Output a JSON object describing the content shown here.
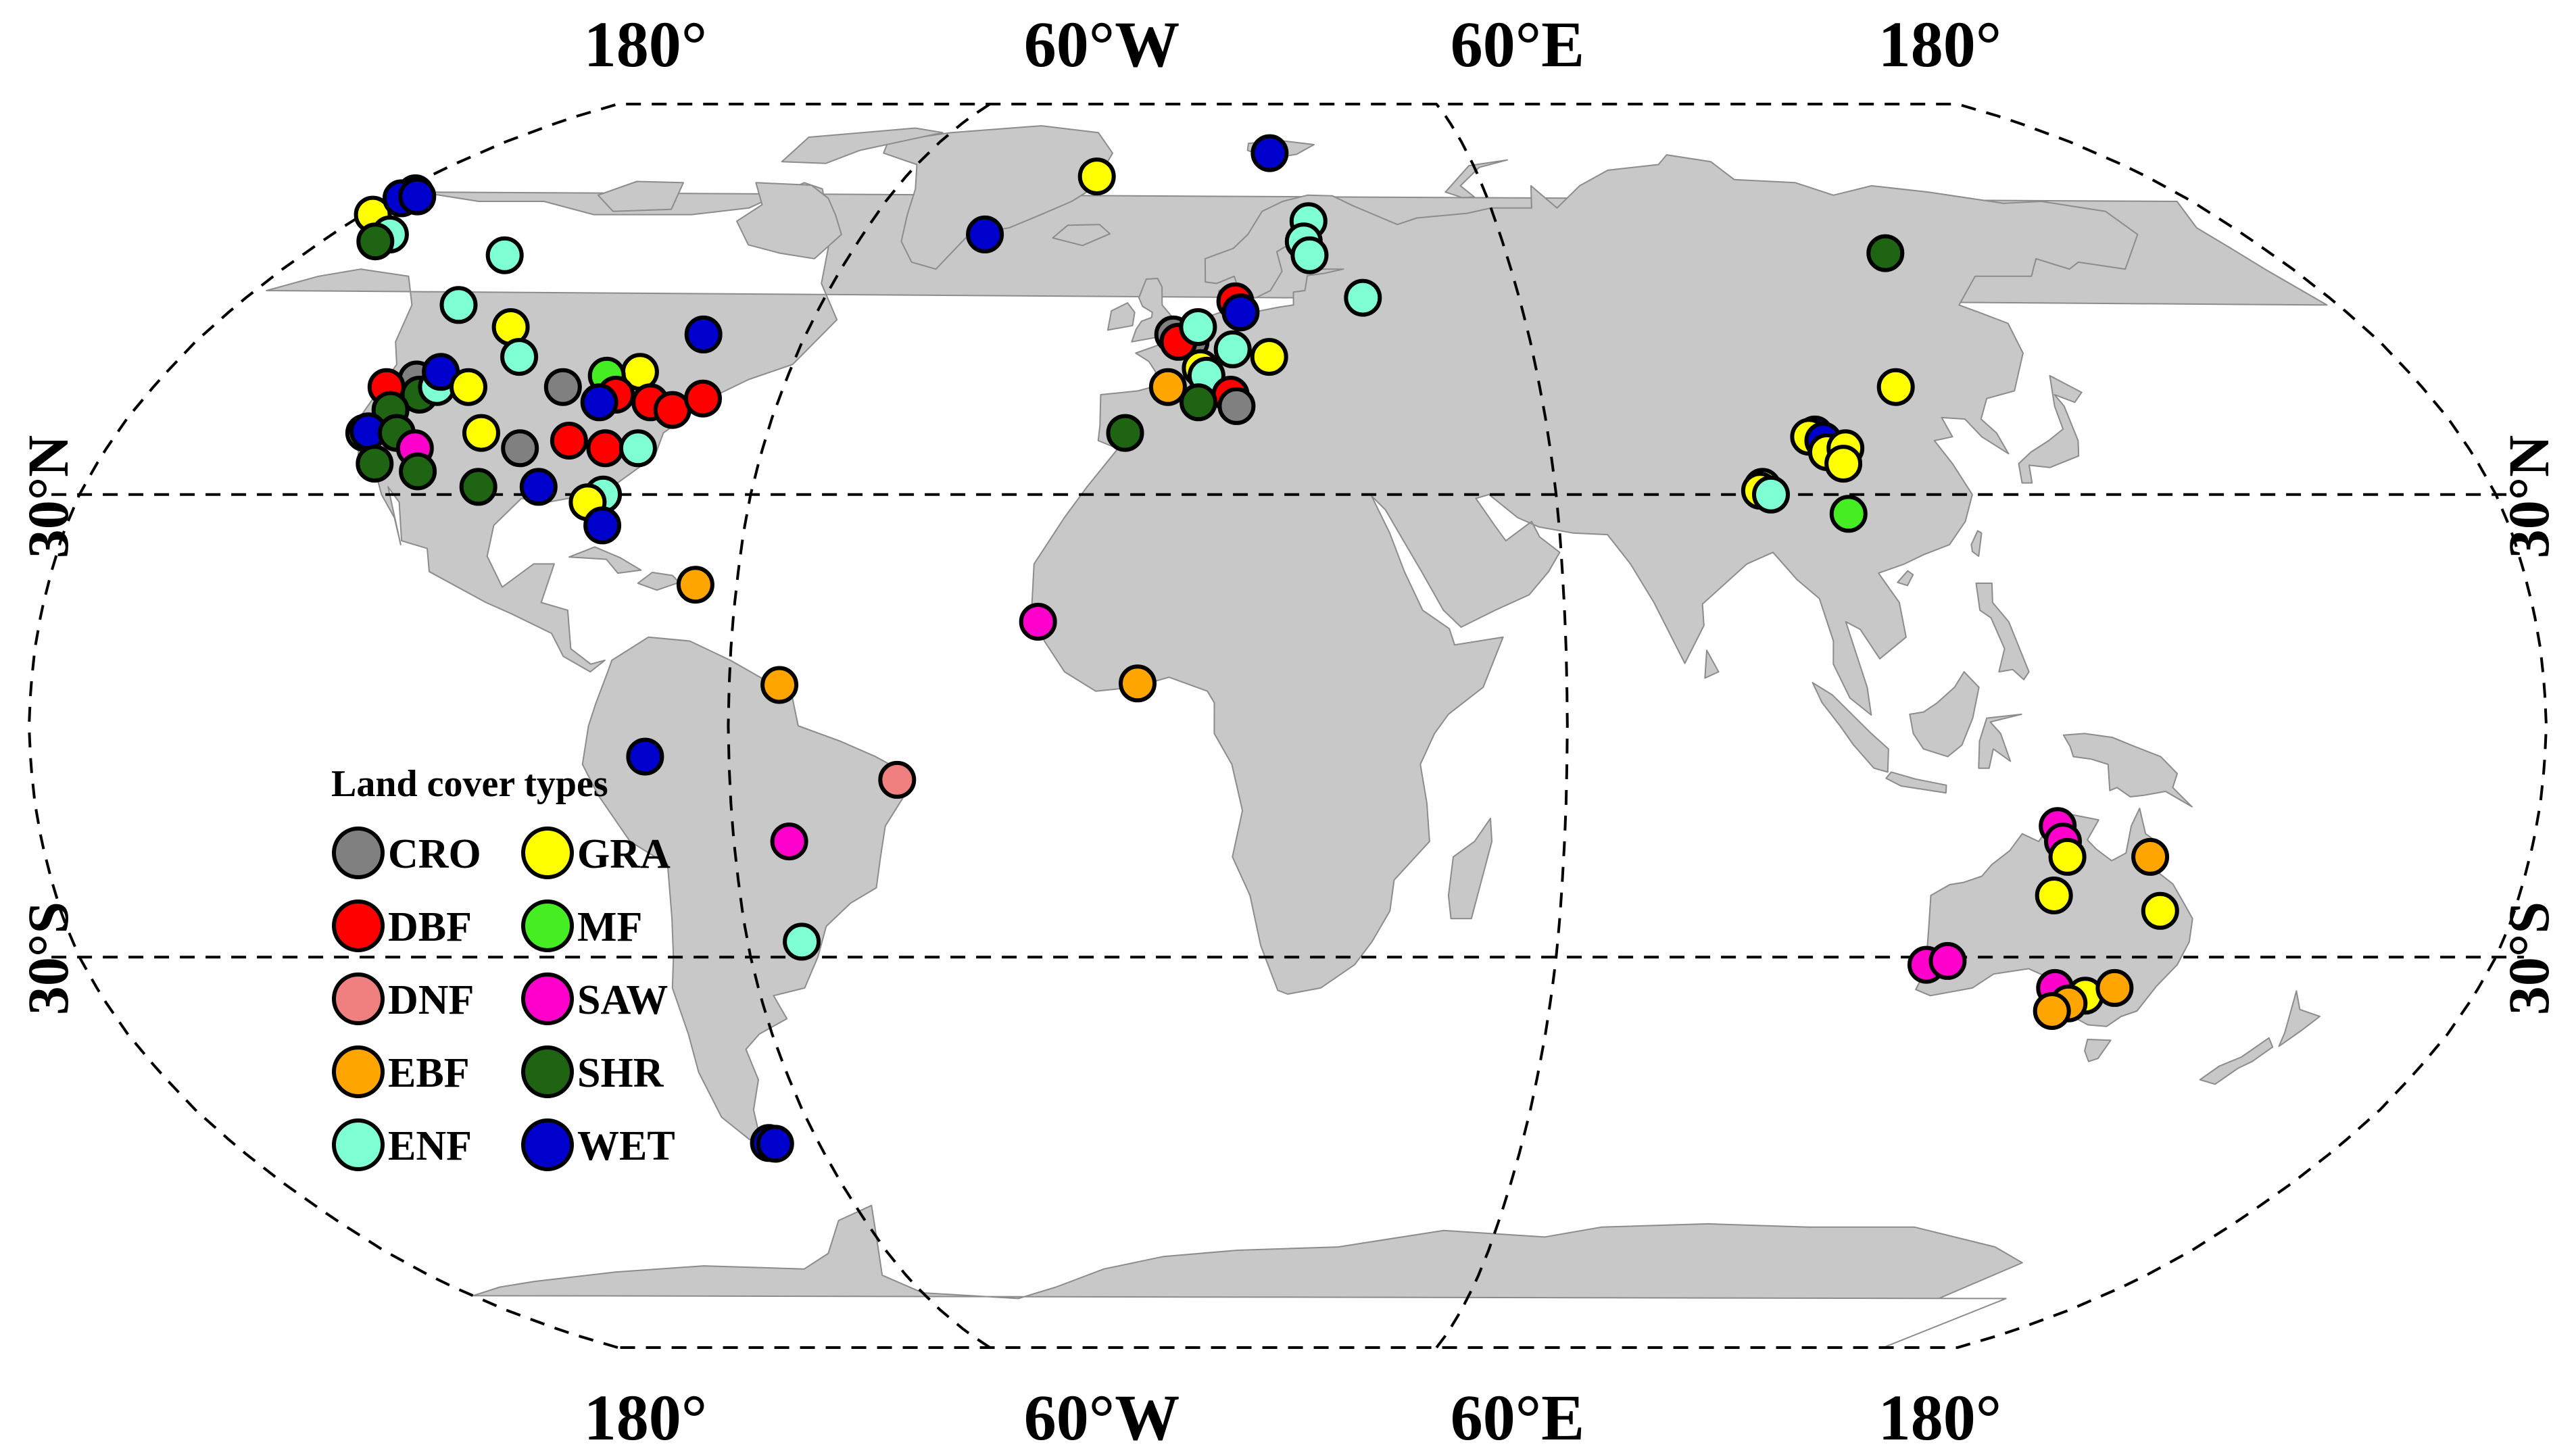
{
  "graticule_labels": {
    "top": [
      "180°",
      "60°W",
      "60°E",
      "180°"
    ],
    "bottom": [
      "180°",
      "60°W",
      "60°E",
      "180°"
    ],
    "left": [
      "30°N",
      "30°S"
    ],
    "right": [
      "30°N",
      "30°S"
    ]
  },
  "legend": {
    "title": "Land cover types",
    "items": [
      {
        "code": "CRO",
        "color": "#808080"
      },
      {
        "code": "GRA",
        "color": "#ffff00"
      },
      {
        "code": "DBF",
        "color": "#ff0000"
      },
      {
        "code": "MF",
        "color": "#44ee22"
      },
      {
        "code": "DNF",
        "color": "#f08080"
      },
      {
        "code": "SAW",
        "color": "#ff00cc"
      },
      {
        "code": "EBF",
        "color": "#ffa500"
      },
      {
        "code": "SHR",
        "color": "#1e6412"
      },
      {
        "code": "ENF",
        "color": "#7fffd4"
      },
      {
        "code": "WET",
        "color": "#0000cd"
      }
    ]
  },
  "colors": {
    "land": "#c8c8c8",
    "land_outline": "#8c8c8c",
    "graticule": "#000000"
  },
  "sites": [
    {
      "type": "GRA",
      "lon": -158,
      "lat": 68
    },
    {
      "type": "WET",
      "lon": -156.5,
      "lat": 71.3
    },
    {
      "type": "WET",
      "lon": -157.5,
      "lat": 70.5
    },
    {
      "type": "WET",
      "lon": -155,
      "lat": 70.8
    },
    {
      "type": "ENF",
      "lon": -149,
      "lat": 65
    },
    {
      "type": "SHR",
      "lon": -150,
      "lat": 64
    },
    {
      "type": "ENF",
      "lon": -123,
      "lat": 62
    },
    {
      "type": "ENF",
      "lon": -122,
      "lat": 55
    },
    {
      "type": "GRA",
      "lon": -110,
      "lat": 52
    },
    {
      "type": "WET",
      "lon": -77,
      "lat": 51
    },
    {
      "type": "ENF",
      "lon": -105,
      "lat": 48
    },
    {
      "type": "GRA",
      "lon": -84,
      "lat": 46
    },
    {
      "type": "CRO",
      "lon": -119,
      "lat": 45
    },
    {
      "type": "DBF",
      "lon": -123,
      "lat": 44
    },
    {
      "type": "SHR",
      "lon": -117,
      "lat": 43
    },
    {
      "type": "ENF",
      "lon": -115,
      "lat": 44
    },
    {
      "type": "WET",
      "lon": -116,
      "lat": 46
    },
    {
      "type": "SHR",
      "lon": -120,
      "lat": 41
    },
    {
      "type": "GRA",
      "lon": -110,
      "lat": 44
    },
    {
      "type": "MF",
      "lon": -89,
      "lat": 45.5
    },
    {
      "type": "CRO",
      "lon": -95,
      "lat": 44
    },
    {
      "type": "DBF",
      "lon": -86,
      "lat": 43
    },
    {
      "type": "WET",
      "lon": -88,
      "lat": 42
    },
    {
      "type": "DBF",
      "lon": -80,
      "lat": 42
    },
    {
      "type": "DBF",
      "lon": -76,
      "lat": 41
    },
    {
      "type": "DBF",
      "lon": -72,
      "lat": 42.5
    },
    {
      "type": "GRA",
      "lon": -122,
      "lat": 38
    },
    {
      "type": "WET",
      "lon": -121.5,
      "lat": 38.2
    },
    {
      "type": "SHR",
      "lon": -117,
      "lat": 38
    },
    {
      "type": "SAW",
      "lon": -113,
      "lat": 36
    },
    {
      "type": "GRA",
      "lon": -104,
      "lat": 38
    },
    {
      "type": "CRO",
      "lon": -97,
      "lat": 36
    },
    {
      "type": "DBF",
      "lon": -90,
      "lat": 37
    },
    {
      "type": "DBF",
      "lon": -84,
      "lat": 36
    },
    {
      "type": "ENF",
      "lon": -79,
      "lat": 36
    },
    {
      "type": "SHR",
      "lon": -118,
      "lat": 34
    },
    {
      "type": "SHR",
      "lon": -111,
      "lat": 33
    },
    {
      "type": "SHR",
      "lon": -101,
      "lat": 31
    },
    {
      "type": "WET",
      "lon": -92,
      "lat": 31
    },
    {
      "type": "ENF",
      "lon": -82,
      "lat": 30
    },
    {
      "type": "GRA",
      "lon": -84,
      "lat": 29
    },
    {
      "type": "WET",
      "lon": -81,
      "lat": 26
    },
    {
      "type": "EBF",
      "lon": -66,
      "lat": 18.3
    },
    {
      "type": "EBF",
      "lon": -52.8,
      "lat": 5.3
    },
    {
      "type": "WET",
      "lon": -72,
      "lat": -4
    },
    {
      "type": "DNF",
      "lon": -36,
      "lat": -7
    },
    {
      "type": "SAW",
      "lon": -52,
      "lat": -15
    },
    {
      "type": "ENF",
      "lon": -52,
      "lat": -28
    },
    {
      "type": "WET",
      "lon": -68.5,
      "lat": -54.5
    },
    {
      "type": "WET",
      "lon": -67.5,
      "lat": -54.6
    },
    {
      "type": "WET",
      "lon": -37,
      "lat": 65
    },
    {
      "type": "GRA",
      "lon": -20,
      "lat": 74
    },
    {
      "type": "WET",
      "lon": 16,
      "lat": 78
    },
    {
      "type": "SAW",
      "lon": -16,
      "lat": 13.5
    },
    {
      "type": "EBF",
      "lon": -1.5,
      "lat": 5.5
    },
    {
      "type": "ENF",
      "lon": 24,
      "lat": 67
    },
    {
      "type": "ENF",
      "lon": 23,
      "lat": 64
    },
    {
      "type": "ENF",
      "lon": 24,
      "lat": 62
    },
    {
      "type": "ENF",
      "lon": 33,
      "lat": 56
    },
    {
      "type": "DBF",
      "lon": 11,
      "lat": 55.5
    },
    {
      "type": "WET",
      "lon": 12,
      "lat": 54
    },
    {
      "type": "CRO",
      "lon": 1,
      "lat": 51
    },
    {
      "type": "CRO",
      "lon": 4,
      "lat": 50
    },
    {
      "type": "DBF",
      "lon": 2,
      "lat": 50
    },
    {
      "type": "ENF",
      "lon": 5,
      "lat": 52
    },
    {
      "type": "ENF",
      "lon": 11,
      "lat": 49
    },
    {
      "type": "GRA",
      "lon": 17,
      "lat": 48
    },
    {
      "type": "GRA",
      "lon": 6,
      "lat": 46.5
    },
    {
      "type": "EBF",
      "lon": 1,
      "lat": 44
    },
    {
      "type": "ENF",
      "lon": 7,
      "lat": 45.5
    },
    {
      "type": "DBF",
      "lon": 11,
      "lat": 43
    },
    {
      "type": "CRO",
      "lon": 12,
      "lat": 41.5
    },
    {
      "type": "SHR",
      "lon": 6,
      "lat": 42
    },
    {
      "type": "SHR",
      "lon": -5,
      "lat": 38
    },
    {
      "type": "SHR",
      "lon": 129.5,
      "lat": 62.3
    },
    {
      "type": "GRA",
      "lon": 116.5,
      "lat": 44
    },
    {
      "type": "WET",
      "lon": 101,
      "lat": 37.8
    },
    {
      "type": "GRA",
      "lon": 100,
      "lat": 37.5
    },
    {
      "type": "WET",
      "lon": 102,
      "lat": 37
    },
    {
      "type": "GRA",
      "lon": 102,
      "lat": 35.5
    },
    {
      "type": "GRA",
      "lon": 105,
      "lat": 36
    },
    {
      "type": "GRA",
      "lon": 104,
      "lat": 34
    },
    {
      "type": "GRA",
      "lon": 91,
      "lat": 31
    },
    {
      "type": "GRA",
      "lon": 90.5,
      "lat": 30.5
    },
    {
      "type": "ENF",
      "lon": 92,
      "lat": 30
    },
    {
      "type": "MF",
      "lon": 103,
      "lat": 27.5
    },
    {
      "type": "SAW",
      "lon": 131,
      "lat": -13
    },
    {
      "type": "SAW",
      "lon": 132,
      "lat": -15
    },
    {
      "type": "GRA",
      "lon": 133,
      "lat": -17
    },
    {
      "type": "GRA",
      "lon": 132,
      "lat": -22
    },
    {
      "type": "EBF",
      "lon": 145,
      "lat": -17
    },
    {
      "type": "GRA",
      "lon": 148,
      "lat": -24
    },
    {
      "type": "SAW",
      "lon": 115.5,
      "lat": -31
    },
    {
      "type": "SAW",
      "lon": 118.5,
      "lat": -30.5
    },
    {
      "type": "SAW",
      "lon": 136,
      "lat": -34
    },
    {
      "type": "GRA",
      "lon": 141,
      "lat": -35
    },
    {
      "type": "EBF",
      "lon": 145,
      "lat": -34
    },
    {
      "type": "EBF",
      "lon": 139,
      "lat": -36
    },
    {
      "type": "EBF",
      "lon": 137,
      "lat": -37
    }
  ]
}
